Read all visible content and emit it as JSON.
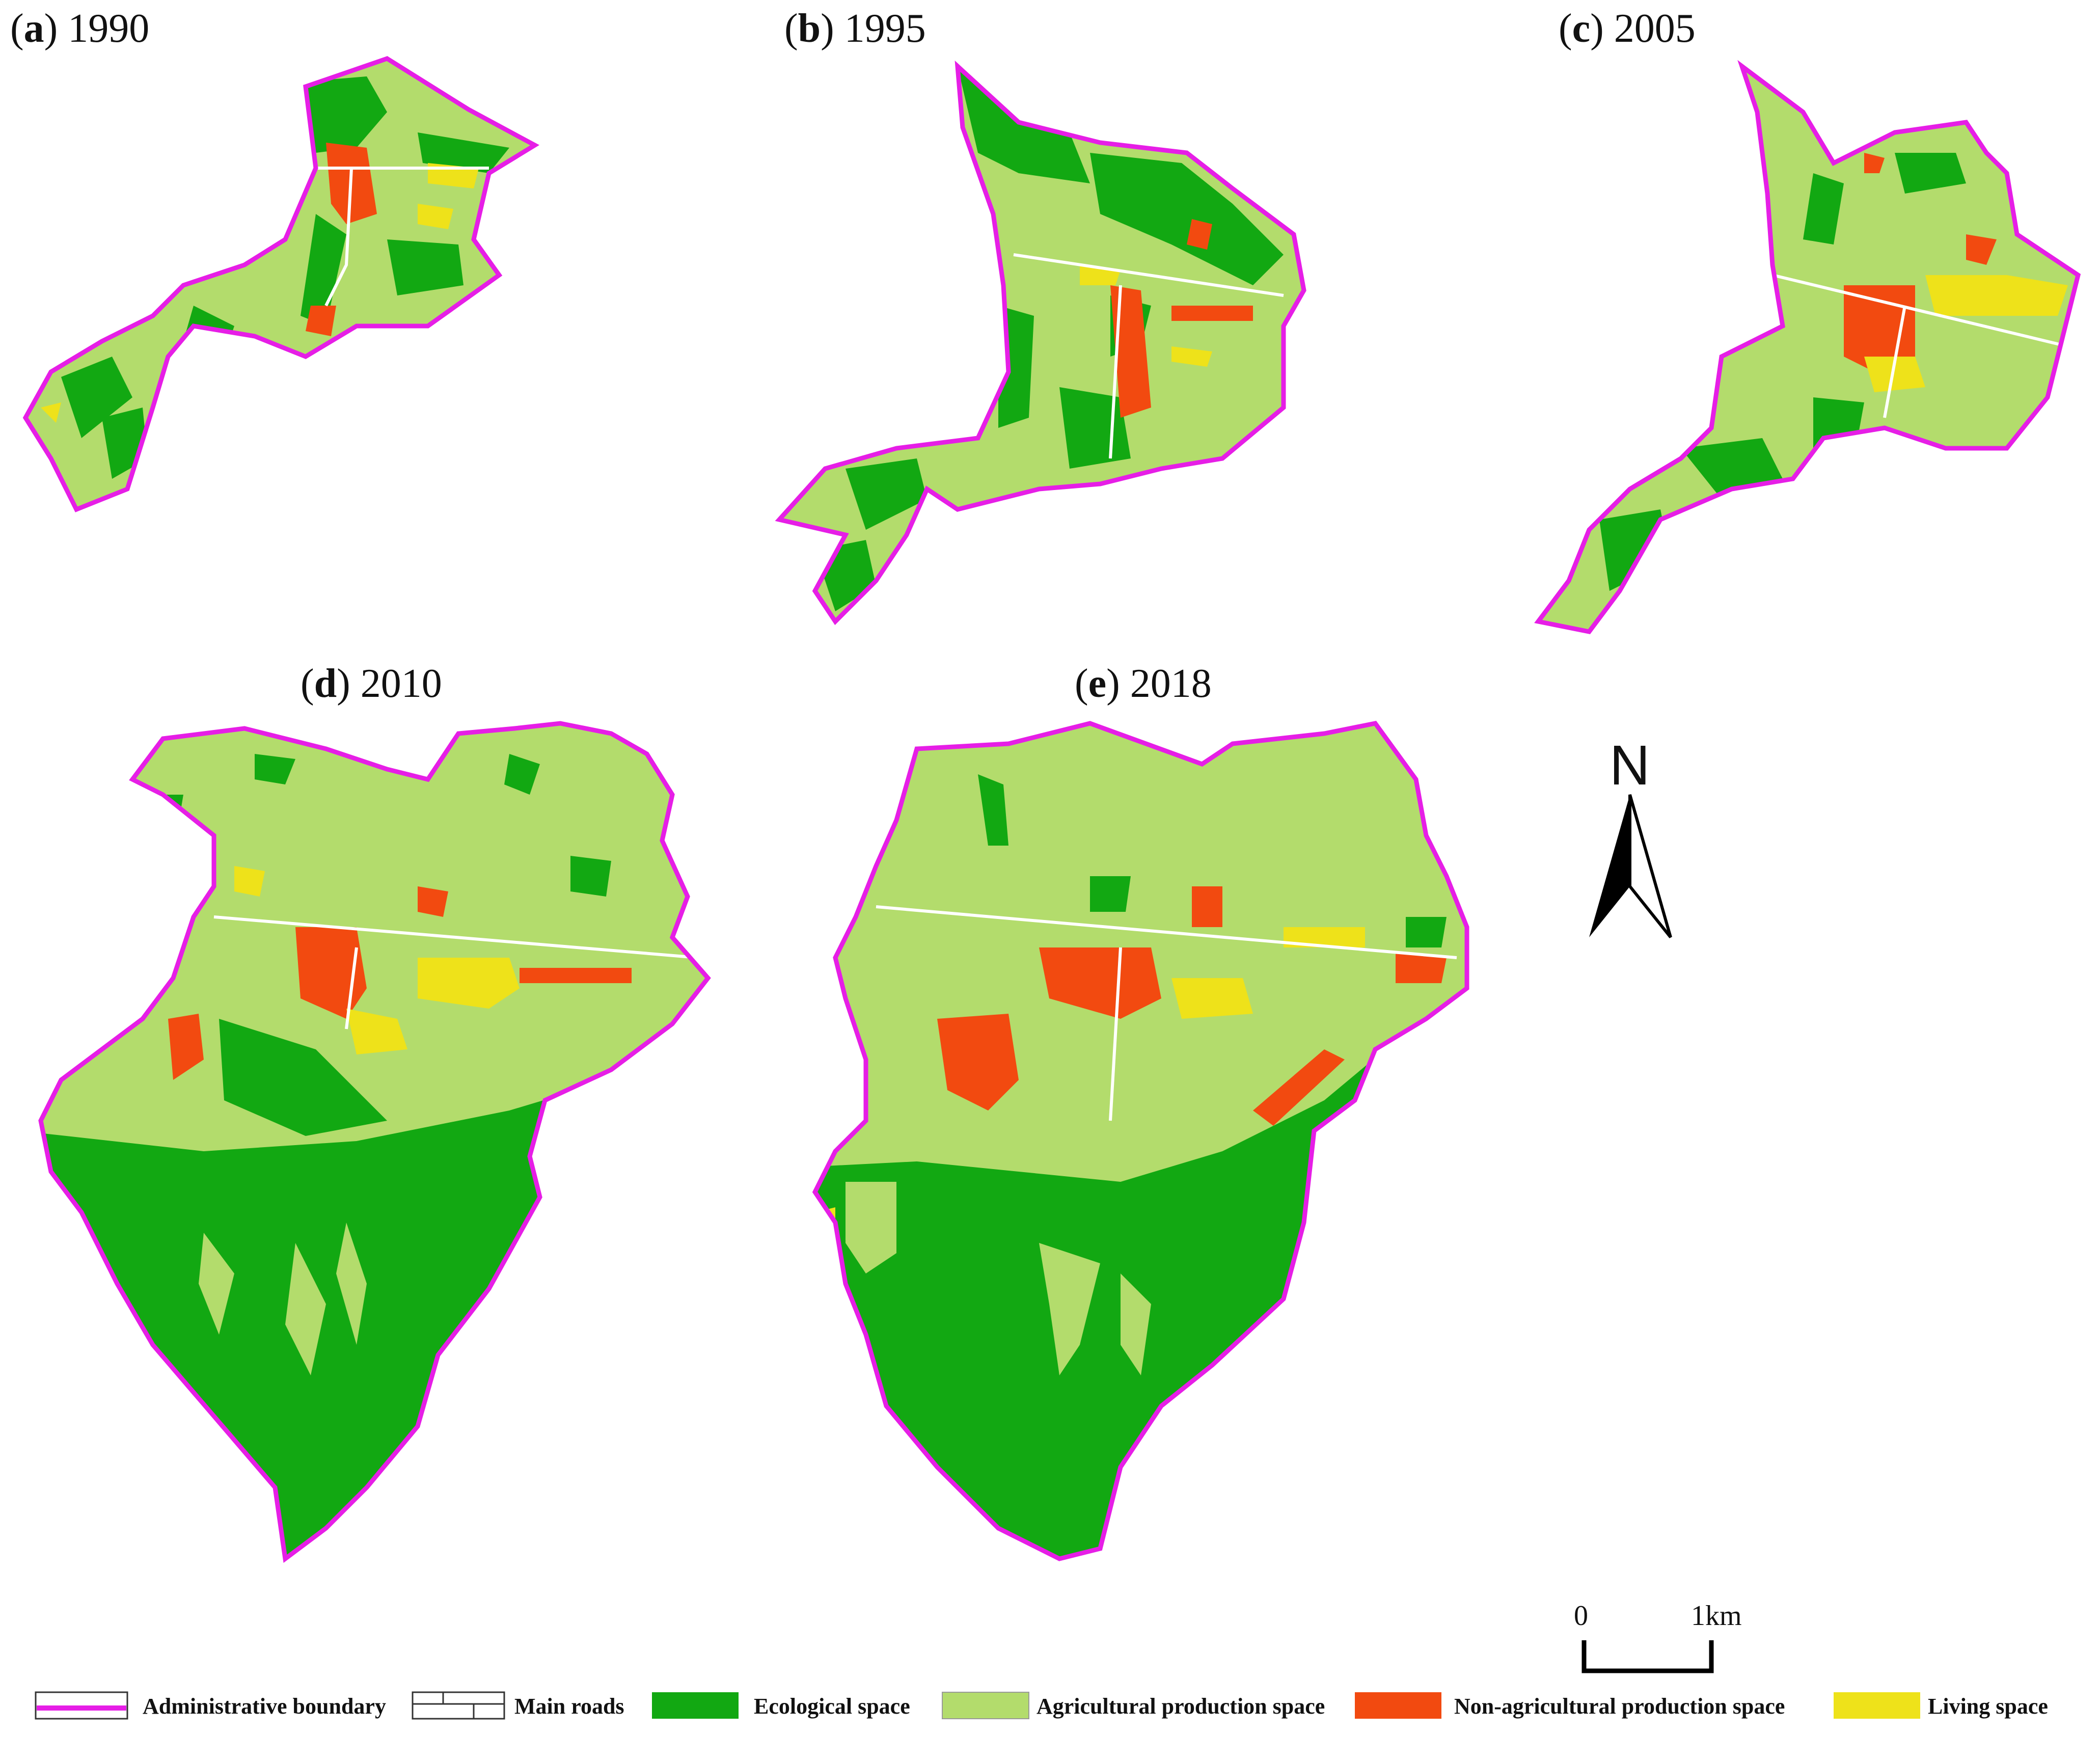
{
  "panels": [
    {
      "letter": "a",
      "year": "1990"
    },
    {
      "letter": "b",
      "year": "1995"
    },
    {
      "letter": "c",
      "year": "2005"
    },
    {
      "letter": "d",
      "year": "2010"
    },
    {
      "letter": "e",
      "year": "2018"
    }
  ],
  "north_arrow": {
    "label": "N"
  },
  "scale_bar": {
    "start": "0",
    "end": "1km"
  },
  "legend": [
    {
      "key": "boundary",
      "label": "Administrative boundary",
      "color": "#e61ee6"
    },
    {
      "key": "roads",
      "label": "Main roads",
      "color": "#ffffff"
    },
    {
      "key": "ecological",
      "label": "Ecological space",
      "color": "#12a812"
    },
    {
      "key": "agricultural",
      "label": "Agricultural production space",
      "color": "#b3dc6c"
    },
    {
      "key": "nonagricultural",
      "label": "Non-agricultural production space",
      "color": "#f24a10"
    },
    {
      "key": "living",
      "label": "Living space",
      "color": "#eee21a"
    }
  ]
}
